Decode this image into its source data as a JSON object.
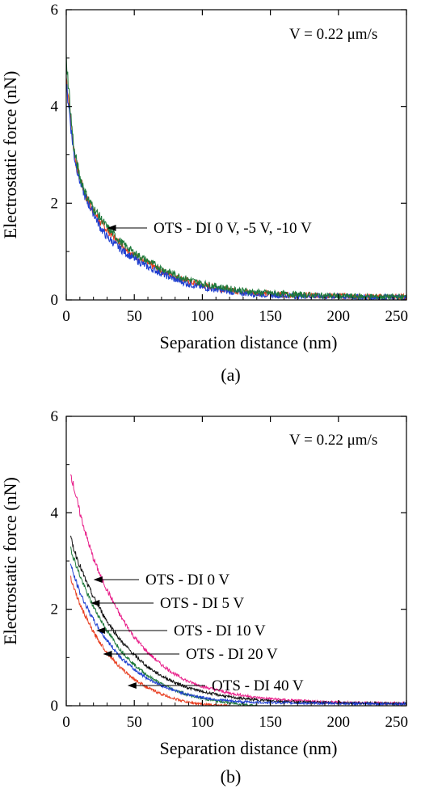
{
  "chart_data": [
    {
      "type": "line",
      "panel_label": "(a)",
      "xlabel": "Separation distance (nm)",
      "ylabel": "Electrostatic force (nN)",
      "xlim": [
        0,
        250
      ],
      "ylim": [
        0,
        6
      ],
      "xticks": [
        0,
        50,
        100,
        150,
        200,
        250
      ],
      "yticks": [
        0,
        2,
        4,
        6
      ],
      "grid": false,
      "speed_label": "V = 0.22 μm/s",
      "annotations": [
        {
          "text": "OTS - DI 0 V, -5 V, -10 V",
          "x": 30,
          "y": 1.55
        }
      ],
      "series": [
        {
          "color": "#e83c1e",
          "x": [
            0,
            2,
            4,
            6,
            8,
            10,
            15,
            20,
            25,
            30,
            40,
            50,
            60,
            70,
            80,
            90,
            100,
            120,
            140,
            160,
            180,
            200,
            220,
            250
          ],
          "y": [
            4.6,
            4.1,
            3.5,
            3.0,
            2.75,
            2.5,
            2.1,
            1.85,
            1.6,
            1.45,
            1.15,
            0.92,
            0.75,
            0.6,
            0.48,
            0.38,
            0.3,
            0.2,
            0.14,
            0.11,
            0.09,
            0.08,
            0.07,
            0.06
          ]
        },
        {
          "color": "#1e3fd0",
          "x": [
            0,
            2,
            4,
            6,
            8,
            10,
            15,
            20,
            25,
            30,
            40,
            50,
            60,
            70,
            80,
            90,
            100,
            120,
            140,
            160,
            180,
            200,
            220,
            250
          ],
          "y": [
            4.4,
            4.0,
            3.4,
            2.95,
            2.7,
            2.45,
            2.05,
            1.8,
            1.5,
            1.3,
            1.05,
            0.85,
            0.68,
            0.55,
            0.42,
            0.33,
            0.26,
            0.17,
            0.12,
            0.09,
            0.08,
            0.07,
            0.06,
            0.05
          ]
        },
        {
          "color": "#1e7a3a",
          "x": [
            0,
            2,
            4,
            6,
            8,
            10,
            15,
            20,
            25,
            30,
            40,
            50,
            60,
            70,
            80,
            90,
            100,
            120,
            140,
            160,
            180,
            200,
            220,
            250
          ],
          "y": [
            5.0,
            4.3,
            3.6,
            3.05,
            2.8,
            2.55,
            2.15,
            1.9,
            1.7,
            1.5,
            1.2,
            0.97,
            0.8,
            0.65,
            0.52,
            0.42,
            0.34,
            0.23,
            0.16,
            0.12,
            0.1,
            0.08,
            0.07,
            0.06
          ]
        }
      ]
    },
    {
      "type": "line",
      "panel_label": "(b)",
      "xlabel": "Separation distance (nm)",
      "ylabel": "Electrostatic force (nN)",
      "xlim": [
        0,
        250
      ],
      "ylim": [
        0,
        6
      ],
      "xticks": [
        0,
        50,
        100,
        150,
        200,
        250
      ],
      "yticks": [
        0,
        2,
        4,
        6
      ],
      "grid": false,
      "speed_label": "V = 0.22 μm/s",
      "annotations": [
        {
          "text": "OTS - DI 0 V",
          "x": 20,
          "y": 2.65
        },
        {
          "text": "OTS - DI 5 V",
          "x": 18,
          "y": 2.1
        },
        {
          "text": "OTS - DI 10 V",
          "x": 22,
          "y": 1.5
        },
        {
          "text": "OTS - DI 20 V",
          "x": 27,
          "y": 1.05
        },
        {
          "text": "OTS - DI 40 V",
          "x": 45,
          "y": 0.5
        }
      ],
      "series": [
        {
          "color": "#e8208a",
          "x": [
            3,
            5,
            10,
            15,
            20,
            25,
            30,
            40,
            50,
            60,
            70,
            80,
            90,
            100,
            120,
            140,
            160,
            180,
            200,
            220,
            250
          ],
          "y": [
            4.85,
            4.6,
            4.0,
            3.5,
            3.05,
            2.7,
            2.4,
            1.85,
            1.42,
            1.1,
            0.85,
            0.65,
            0.5,
            0.4,
            0.26,
            0.17,
            0.12,
            0.09,
            0.07,
            0.06,
            0.05
          ]
        },
        {
          "color": "#111111",
          "x": [
            3,
            5,
            10,
            15,
            20,
            25,
            30,
            40,
            50,
            60,
            70,
            80,
            90,
            100,
            120,
            140,
            160,
            180,
            200,
            220,
            250
          ],
          "y": [
            3.5,
            3.3,
            2.9,
            2.55,
            2.25,
            2.0,
            1.75,
            1.35,
            1.05,
            0.8,
            0.62,
            0.48,
            0.37,
            0.29,
            0.18,
            0.12,
            0.09,
            0.07,
            0.06,
            0.05,
            0.04
          ]
        },
        {
          "color": "#1e7a3a",
          "x": [
            3,
            5,
            10,
            15,
            20,
            25,
            30,
            40,
            50,
            60,
            70,
            80,
            90,
            100,
            110,
            120,
            130,
            140
          ],
          "y": [
            3.3,
            3.1,
            2.7,
            2.35,
            2.05,
            1.8,
            1.55,
            1.15,
            0.85,
            0.62,
            0.45,
            0.32,
            0.22,
            0.15,
            0.1,
            0.06,
            0.03,
            0.0
          ]
        },
        {
          "color": "#1e3fd0",
          "x": [
            3,
            5,
            10,
            15,
            20,
            25,
            30,
            40,
            50,
            60,
            70,
            80,
            90,
            100,
            110,
            120,
            130,
            140,
            160,
            180,
            200,
            220,
            250
          ],
          "y": [
            2.95,
            2.75,
            2.35,
            2.05,
            1.78,
            1.55,
            1.35,
            1.0,
            0.75,
            0.56,
            0.42,
            0.31,
            0.23,
            0.17,
            0.13,
            0.1,
            0.08,
            0.07,
            0.06,
            0.05,
            0.05,
            0.04,
            0.04
          ]
        },
        {
          "color": "#e83c1e",
          "x": [
            3,
            5,
            10,
            15,
            20,
            25,
            30,
            40,
            50,
            60,
            70,
            80,
            90,
            100,
            110,
            120
          ],
          "y": [
            2.7,
            2.5,
            2.1,
            1.8,
            1.52,
            1.3,
            1.1,
            0.78,
            0.55,
            0.37,
            0.24,
            0.14,
            0.07,
            0.03,
            0.01,
            0.0
          ]
        }
      ]
    }
  ]
}
